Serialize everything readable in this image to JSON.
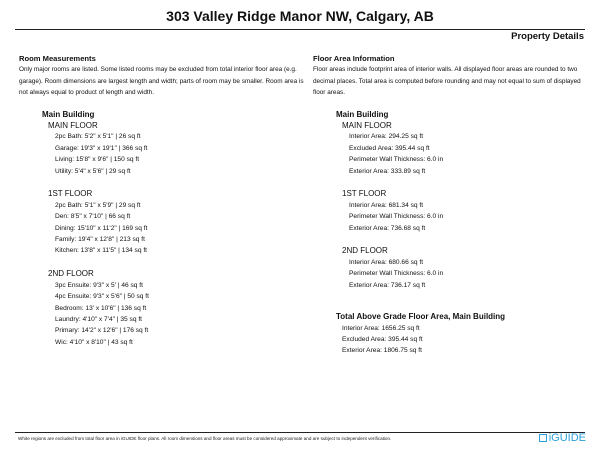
{
  "title": "303 Valley Ridge Manor NW, Calgary, AB",
  "subtitle": "Property Details",
  "room_measurements": {
    "heading": "Room Measurements",
    "description": "Only major rooms are listed. Some listed rooms may be excluded from total interior floor area (e.g. garage). Room dimensions are largest length and width; parts of room may be smaller. Room area is not always equal to product of length and width.",
    "building": "Main Building",
    "floors": [
      {
        "name": "MAIN FLOOR",
        "items": [
          "2pc Bath: 5'2\" x 5'1\" | 26 sq ft",
          "Garage: 19'3\" x 19'1\" | 366 sq ft",
          "Living: 15'8\" x 9'6\" | 150 sq ft",
          "Utility: 5'4\" x 5'6\" | 29 sq ft"
        ]
      },
      {
        "name": "1ST FLOOR",
        "items": [
          "2pc Bath: 5'1\" x 5'9\" | 29 sq ft",
          "Den: 8'5\" x 7'10\" | 66 sq ft",
          "Dining: 15'10\" x 11'2\" | 169 sq ft",
          "Family: 19'4\" x 12'8\" | 213 sq ft",
          "Kitchen: 13'8\" x 11'5\" | 134 sq ft"
        ]
      },
      {
        "name": "2ND FLOOR",
        "items": [
          "3pc Ensuite: 9'3\" x 5' | 46 sq ft",
          "4pc Ensuite: 9'3\" x 5'6\" | 50 sq ft",
          "Bedroom: 13' x 10'6\" | 136 sq ft",
          "Laundry: 4'10\" x 7'4\" | 35 sq ft",
          "Primary: 14'2\" x 12'6\" | 176 sq ft",
          "Wic: 4'10\" x 8'10\" | 43 sq ft"
        ]
      }
    ]
  },
  "floor_area": {
    "heading": "Floor Area Information",
    "description": "Floor areas include footprint area of interior walls. All displayed floor areas are rounded to two decimal places. Total area is computed before rounding and may not equal to sum of displayed floor areas.",
    "building": "Main Building",
    "floors": [
      {
        "name": "MAIN FLOOR",
        "items": [
          "Interior Area: 294.25 sq ft",
          "Excluded Area: 395.44 sq ft",
          "Perimeter Wall Thickness: 6.0 in",
          "Exterior Area: 333.89 sq ft"
        ]
      },
      {
        "name": "1ST FLOOR",
        "items": [
          "Interior Area: 681.34 sq ft",
          "Perimeter Wall Thickness: 6.0 in",
          "Exterior Area: 736.68 sq ft"
        ]
      },
      {
        "name": "2ND FLOOR",
        "items": [
          "Interior Area: 680.66 sq ft",
          "Perimeter Wall Thickness: 6.0 in",
          "Exterior Area: 736.17 sq ft"
        ]
      }
    ],
    "total": {
      "heading": "Total Above Grade Floor Area, Main Building",
      "items": [
        "Interior Area: 1656.25 sq ft",
        "Excluded Area: 395.44 sq ft",
        "Exterior Area: 1806.75 sq ft"
      ]
    }
  },
  "footer": {
    "note": "White regions are excluded from total floor area in iGUIDE floor plans. All room dimensions and floor areas must be considered approximate and are subject to independent verification.",
    "logo": "iGUIDE",
    "logo_color": "#2a9fd8"
  }
}
